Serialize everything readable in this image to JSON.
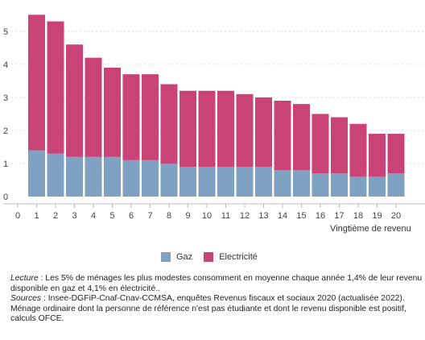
{
  "chart_data": {
    "type": "bar",
    "stacked": true,
    "categories": [
      "1",
      "2",
      "3",
      "4",
      "5",
      "6",
      "7",
      "8",
      "9",
      "10",
      "11",
      "12",
      "13",
      "14",
      "15",
      "16",
      "17",
      "18",
      "19",
      "20"
    ],
    "x_ticks": [
      "0",
      "1",
      "2",
      "3",
      "4",
      "5",
      "6",
      "7",
      "8",
      "9",
      "10",
      "11",
      "12",
      "13",
      "14",
      "15",
      "16",
      "17",
      "18",
      "19",
      "20"
    ],
    "y_ticks": [
      "0",
      "1",
      "2",
      "3",
      "4",
      "5"
    ],
    "ylim": [
      0,
      5.8
    ],
    "xlabel": "Vingtième de revenu",
    "ylabel": "",
    "grid": true,
    "legend_position": "bottom",
    "series": [
      {
        "name": "Gaz",
        "color": "#7fa1c2",
        "values": [
          1.4,
          1.3,
          1.2,
          1.2,
          1.2,
          1.1,
          1.1,
          1.0,
          0.9,
          0.9,
          0.9,
          0.9,
          0.9,
          0.8,
          0.8,
          0.7,
          0.7,
          0.6,
          0.6,
          0.7
        ]
      },
      {
        "name": "Electricité",
        "color": "#c94377",
        "values": [
          4.1,
          4.0,
          3.4,
          3.0,
          2.7,
          2.6,
          2.6,
          2.4,
          2.3,
          2.3,
          2.3,
          2.2,
          2.1,
          2.1,
          2.0,
          1.8,
          1.7,
          1.6,
          1.3,
          1.2
        ]
      }
    ]
  },
  "notes": {
    "lecture_label": "Lecture",
    "lecture_text": " : Les 5% de ménages les plus modestes consomment en moyenne chaque année 1,4% de leur revenu",
    "lecture_text2": "disponible en gaz et 4,1% en électricité..",
    "sources_label": "Sources",
    "sources_text": " : Insee-DGFiP-Cnaf-Cnav-CCMSA, enquêtes Revenus fiscaux et sociaux 2020 (actualisée 2022).",
    "champ_text": "Ménage ordinaire dont la personne de référence n'est pas étudiante et dont le revenu disponible est positif,",
    "calc_text": "calculs OFCE."
  }
}
